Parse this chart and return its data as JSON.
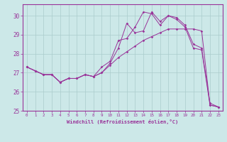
{
  "xlabel": "Windchill (Refroidissement éolien,°C)",
  "background_color": "#cce8e8",
  "grid_color": "#aacccc",
  "line_color": "#993399",
  "xlim": [
    -0.5,
    23.5
  ],
  "ylim": [
    25.0,
    30.6
  ],
  "yticks": [
    25,
    26,
    27,
    28,
    29,
    30
  ],
  "xticks": [
    0,
    1,
    2,
    3,
    4,
    5,
    6,
    7,
    8,
    9,
    10,
    11,
    12,
    13,
    14,
    15,
    16,
    17,
    18,
    19,
    20,
    21,
    22,
    23
  ],
  "series": [
    [
      27.3,
      27.1,
      26.9,
      26.9,
      26.5,
      26.7,
      26.7,
      26.9,
      26.8,
      27.0,
      27.4,
      27.8,
      28.1,
      28.4,
      28.7,
      28.9,
      29.1,
      29.3,
      29.3,
      29.3,
      29.3,
      29.2,
      25.3,
      25.2
    ],
    [
      27.3,
      27.1,
      26.9,
      26.9,
      26.5,
      26.7,
      26.7,
      26.9,
      26.8,
      27.0,
      27.5,
      28.3,
      29.6,
      29.1,
      29.2,
      30.2,
      29.7,
      30.0,
      29.8,
      29.4,
      28.3,
      28.2,
      25.3,
      25.2
    ],
    [
      27.3,
      27.1,
      26.9,
      26.9,
      26.5,
      26.7,
      26.7,
      26.9,
      26.8,
      27.3,
      27.6,
      28.7,
      28.8,
      29.4,
      30.2,
      30.1,
      29.5,
      30.0,
      29.9,
      29.5,
      28.5,
      28.3,
      25.4,
      25.2
    ]
  ]
}
